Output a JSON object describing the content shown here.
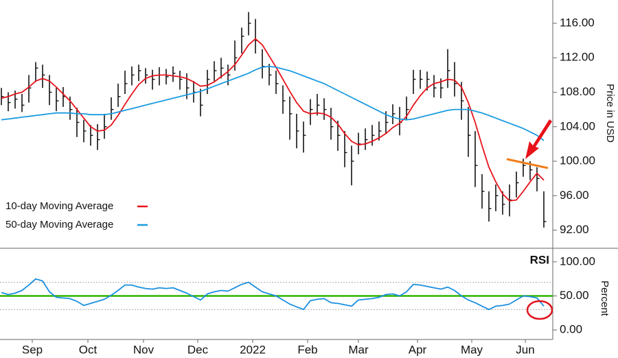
{
  "chart_data": [
    {
      "type": "ohlc",
      "x": [
        0,
        1,
        2,
        3,
        4,
        5,
        6,
        7,
        8,
        9,
        10,
        11,
        12,
        13,
        14,
        15,
        16,
        17,
        18,
        19,
        20,
        21,
        22,
        23,
        24,
        25,
        26,
        27,
        28,
        29,
        30,
        31,
        32,
        33,
        34,
        35,
        36,
        37,
        38,
        39,
        40,
        41,
        42,
        43,
        44,
        45,
        46,
        47,
        48,
        49,
        50,
        51,
        52,
        53,
        54,
        55,
        56,
        57,
        58,
        59,
        60,
        61,
        62,
        63,
        64,
        65,
        66,
        67,
        68,
        69,
        70,
        71,
        72,
        73,
        74,
        75,
        76,
        77,
        78,
        79
      ],
      "high": [
        108.5,
        108,
        108.2,
        107.8,
        110,
        111.5,
        111.2,
        110,
        108.5,
        108.6,
        107.5,
        106.2,
        104.8,
        104.2,
        104.3,
        105.5,
        107.4,
        109,
        110.5,
        111,
        111.2,
        110.8,
        110.6,
        110.9,
        110.7,
        111,
        110.5,
        110.2,
        109.3,
        108.4,
        110.6,
        111.6,
        112,
        111.2,
        114,
        115.5,
        117.3,
        116.5,
        113,
        111.3,
        110.5,
        108.8,
        107.5,
        105.5,
        104.6,
        107.2,
        107.8,
        107.3,
        106.2,
        104.7,
        103.5,
        101.8,
        103.3,
        103.8,
        104.2,
        104.6,
        105.8,
        106.6,
        106.3,
        107.5,
        110.6,
        110.6,
        110.4,
        110,
        109.6,
        113,
        111.5,
        109.2,
        106.3,
        103.5,
        98.5,
        96.5,
        97.3,
        96.5,
        97.3,
        98.8,
        100.3,
        100,
        99.3,
        96.5
      ],
      "low": [
        106.5,
        105.8,
        106.1,
        105.7,
        106.8,
        109.2,
        108.5,
        106.5,
        105.8,
        106.3,
        104.8,
        102.8,
        102.2,
        101.8,
        101.3,
        102.6,
        104.8,
        106.3,
        107.8,
        108.8,
        109.3,
        109,
        108.3,
        108.8,
        108.9,
        109.2,
        108.3,
        107.2,
        106.8,
        105.2,
        107.8,
        109.3,
        109.6,
        108.8,
        110.5,
        112.5,
        114.6,
        112.5,
        109.6,
        108.8,
        107.8,
        105.5,
        102.5,
        101.5,
        101,
        104.2,
        105.3,
        104.8,
        102.5,
        101.2,
        99.3,
        97.2,
        100.8,
        101.3,
        101.8,
        102.4,
        103.2,
        104.3,
        103,
        104.8,
        107.8,
        108.4,
        108.2,
        107.4,
        107.3,
        108.5,
        107.5,
        104.8,
        100.5,
        97,
        94.5,
        93,
        94.2,
        93.8,
        93.6,
        95.8,
        98.2,
        97.8,
        96.5,
        92.3
      ],
      "close": [
        107.5,
        106.8,
        107.2,
        106.5,
        108.5,
        110.8,
        110,
        108,
        107,
        107.5,
        106,
        104.5,
        103.5,
        103,
        102.5,
        104,
        106,
        107.5,
        109,
        110,
        110.5,
        110,
        109.5,
        110,
        109.8,
        110.2,
        109.5,
        108.5,
        108,
        106.5,
        109.5,
        110.5,
        110.8,
        110,
        112,
        114.5,
        116,
        114,
        111,
        110,
        109,
        107,
        105.5,
        103.5,
        103,
        106,
        106.5,
        106,
        104,
        103,
        101,
        100,
        102,
        102.5,
        103,
        103.5,
        104.5,
        105.5,
        104.5,
        106,
        109.5,
        109.5,
        109.5,
        108.5,
        108.5,
        110.5,
        109,
        107,
        103,
        99.5,
        96.5,
        94.5,
        96,
        95,
        95.5,
        97.5,
        99.5,
        99,
        98,
        93
      ],
      "bar_color": "#111111",
      "series": [
        {
          "name": "10-day Moving Average",
          "color": "#e8121a",
          "values": [
            107.3,
            107.5,
            107.8,
            108,
            108.6,
            109.3,
            109.6,
            109.3,
            108.6,
            107.8,
            107,
            106,
            105,
            104,
            103.5,
            103.6,
            104.2,
            105.3,
            106.6,
            107.8,
            108.9,
            109.6,
            109.9,
            110,
            110,
            109.9,
            109.8,
            109.6,
            109.2,
            108.7,
            108.8,
            109.2,
            109.8,
            110.4,
            111.2,
            112.3,
            113.5,
            114.2,
            113.5,
            112.2,
            110.9,
            109.5,
            108.1,
            106.8,
            105.8,
            105.5,
            105.6,
            105.5,
            105.1,
            104.3,
            103.2,
            102.3,
            101.9,
            102,
            102.3,
            102.7,
            103.2,
            103.9,
            104.4,
            105.2,
            106.5,
            107.6,
            108.5,
            109,
            109.2,
            109.5,
            109.4,
            108.6,
            106.8,
            104.5,
            101.8,
            99.3,
            97.6,
            96.2,
            95.4,
            95.5,
            96.5,
            97.6,
            98.6,
            97.8
          ]
        },
        {
          "name": "50-day Moving Average",
          "color": "#1a9be0",
          "values": [
            104.8,
            104.9,
            105,
            105.1,
            105.2,
            105.3,
            105.4,
            105.5,
            105.6,
            105.6,
            105.6,
            105.5,
            105.5,
            105.4,
            105.4,
            105.4,
            105.5,
            105.7,
            105.9,
            106.1,
            106.3,
            106.5,
            106.7,
            106.9,
            107.1,
            107.3,
            107.5,
            107.7,
            107.9,
            108.1,
            108.4,
            108.7,
            109,
            109.3,
            109.6,
            109.9,
            110.2,
            110.6,
            110.9,
            111,
            110.9,
            110.7,
            110.5,
            110.2,
            109.9,
            109.6,
            109.3,
            109,
            108.6,
            108.2,
            107.8,
            107.4,
            107,
            106.6,
            106.2,
            105.8,
            105.4,
            105.1,
            104.9,
            104.8,
            104.9,
            105.1,
            105.3,
            105.5,
            105.7,
            105.9,
            106,
            106,
            106,
            105.8,
            105.6,
            105.3,
            105,
            104.7,
            104.4,
            104.1,
            103.8,
            103.4,
            103,
            102.4
          ]
        }
      ],
      "xlim": [
        -0.2,
        80.3
      ],
      "ylim": [
        89.9,
        118.7
      ],
      "yticks": [
        {
          "value": 92,
          "label": "92.00"
        },
        {
          "value": 96,
          "label": "96.00"
        },
        {
          "value": 100,
          "label": "100.00"
        },
        {
          "value": 104,
          "label": "104.00"
        },
        {
          "value": 108,
          "label": "108.00"
        },
        {
          "value": 112,
          "label": "112.00"
        },
        {
          "value": 116,
          "label": "116.00"
        }
      ],
      "y_label": "Price in USD",
      "legend": "lower left"
    },
    {
      "type": "line",
      "title": "RSI",
      "x": [
        0,
        1,
        2,
        3,
        4,
        5,
        6,
        7,
        8,
        9,
        10,
        11,
        12,
        13,
        14,
        15,
        16,
        17,
        18,
        19,
        20,
        21,
        22,
        23,
        24,
        25,
        26,
        27,
        28,
        29,
        30,
        31,
        32,
        33,
        34,
        35,
        36,
        37,
        38,
        39,
        40,
        41,
        42,
        43,
        44,
        45,
        46,
        47,
        48,
        49,
        50,
        51,
        52,
        53,
        54,
        55,
        56,
        57,
        58,
        59,
        60,
        61,
        62,
        63,
        64,
        65,
        66,
        67,
        68,
        69,
        70,
        71,
        72,
        73,
        74,
        75,
        76,
        77,
        78,
        79
      ],
      "series": [
        {
          "color": "#1a8fe0",
          "values": [
            55,
            52,
            54,
            58,
            66,
            75,
            72,
            56,
            48,
            47,
            46,
            42,
            36,
            39,
            42,
            45,
            51,
            58,
            66,
            66,
            63,
            61,
            60,
            62,
            61,
            62,
            58,
            54,
            49,
            44,
            53,
            56,
            58,
            57,
            62,
            67,
            70,
            63,
            56,
            53,
            50,
            44,
            38,
            34,
            30,
            43,
            45,
            46,
            40,
            39,
            37,
            35,
            44,
            45,
            46,
            48,
            52,
            53,
            50,
            56,
            67,
            66,
            64,
            62,
            60,
            63,
            58,
            50,
            44,
            40,
            35,
            30,
            35,
            36,
            38,
            44,
            50,
            49,
            47,
            35
          ]
        }
      ],
      "hlines": [
        {
          "value": 70,
          "color": "#aaaaaa"
        },
        {
          "value": 50,
          "color": "#2db300"
        },
        {
          "value": 30,
          "color": "#aaaaaa"
        }
      ],
      "xlim": [
        -0.2,
        80.3
      ],
      "ylim": [
        -14,
        120
      ],
      "yticks": [
        {
          "value": 0,
          "label": "0.00"
        },
        {
          "value": 50,
          "label": "50.00"
        },
        {
          "value": 100,
          "label": "100.00"
        }
      ],
      "xticks": [
        {
          "value": 4.5,
          "label": "Sep"
        },
        {
          "value": 12.6,
          "label": "Oct"
        },
        {
          "value": 20.7,
          "label": "Nov"
        },
        {
          "value": 28.6,
          "label": "Dec"
        },
        {
          "value": 36.6,
          "label": "2022"
        },
        {
          "value": 44.6,
          "label": "Feb"
        },
        {
          "value": 52,
          "label": "Mar"
        },
        {
          "value": 60.6,
          "label": "Apr"
        },
        {
          "value": 68.5,
          "label": "May"
        },
        {
          "value": 76.3,
          "label": "Jun"
        }
      ],
      "y_label": "Percent"
    }
  ]
}
